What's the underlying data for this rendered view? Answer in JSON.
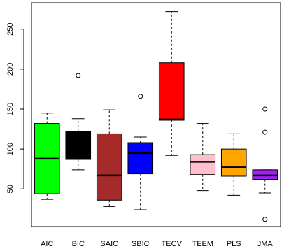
{
  "chart_data": {
    "type": "boxplot",
    "title": "",
    "xlabel": "",
    "ylabel": "",
    "ylim": [
      3,
      283
    ],
    "yticks": [
      50,
      100,
      150,
      200,
      250
    ],
    "categories": [
      "AIC",
      "BIC",
      "SAIC",
      "SBIC",
      "TECV",
      "TEEM",
      "PLS",
      "JMA"
    ],
    "boxes": [
      {
        "label": "AIC",
        "color": "#00ff00",
        "whisker_low": 37,
        "q1": 44,
        "median": 88,
        "q3": 132,
        "whisker_high": 145,
        "outliers": []
      },
      {
        "label": "BIC",
        "color": "#000000",
        "whisker_low": 74,
        "q1": 87,
        "median": 102,
        "q3": 122,
        "whisker_high": 138,
        "outliers": [
          192
        ]
      },
      {
        "label": "SAIC",
        "color": "#a52a2a",
        "whisker_low": 28,
        "q1": 36,
        "median": 67,
        "q3": 119,
        "whisker_high": 149,
        "outliers": []
      },
      {
        "label": "SBIC",
        "color": "#0000ff",
        "whisker_low": 24,
        "q1": 69,
        "median": 95,
        "q3": 108,
        "whisker_high": 115,
        "outliers": [
          166
        ]
      },
      {
        "label": "TECV",
        "color": "#ff0000",
        "whisker_low": 92,
        "q1": 136,
        "median": 137,
        "q3": 208,
        "whisker_high": 272,
        "outliers": []
      },
      {
        "label": "TEEM",
        "color": "#ffc0cb",
        "whisker_low": 48,
        "q1": 68,
        "median": 84,
        "q3": 93,
        "whisker_high": 132,
        "outliers": []
      },
      {
        "label": "PLS",
        "color": "#ffa500",
        "whisker_low": 42,
        "q1": 66,
        "median": 77,
        "q3": 100,
        "whisker_high": 119,
        "outliers": []
      },
      {
        "label": "JMA",
        "color": "#a020f0",
        "whisker_low": 45,
        "q1": 62,
        "median": 67,
        "q3": 74,
        "whisker_high": 74,
        "outliers": [
          150,
          121,
          12
        ]
      }
    ]
  }
}
